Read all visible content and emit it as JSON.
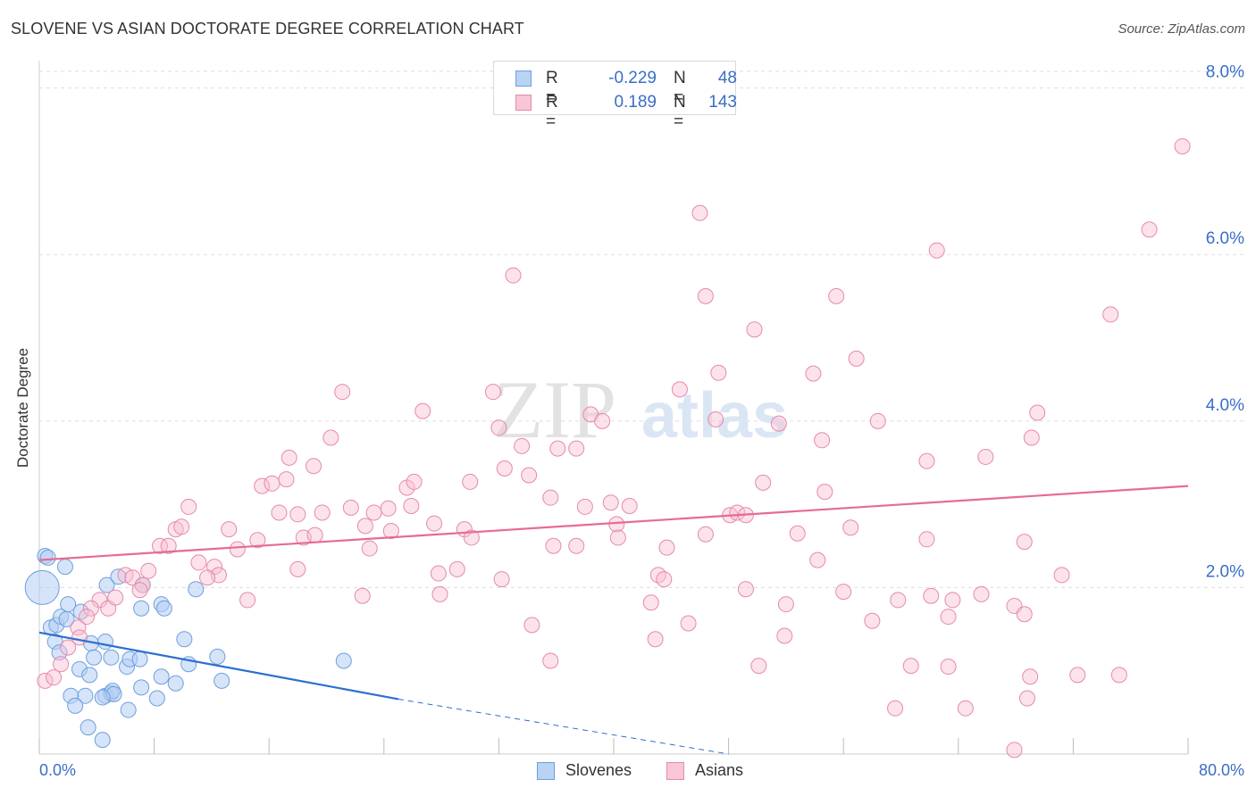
{
  "title": "SLOVENE VS ASIAN DOCTORATE DEGREE CORRELATION CHART",
  "source": "Source: ZipAtlas.com",
  "watermark": {
    "zip": "ZIP",
    "atlas": "atlas"
  },
  "legend_top": [
    {
      "r_label": "R =",
      "r_value": "-0.229",
      "n_label": "N =",
      "n_value": "48",
      "swatch_fill": "#b8d3f4",
      "swatch_stroke": "#6e9fdc"
    },
    {
      "r_label": "R =",
      "r_value": "0.189",
      "n_label": "N =",
      "n_value": "143",
      "swatch_fill": "#f9c6d6",
      "swatch_stroke": "#e58aaa"
    }
  ],
  "legend_bottom": [
    {
      "label": "Slovenes",
      "swatch_fill": "#b8d3f4",
      "swatch_stroke": "#6e9fdc"
    },
    {
      "label": "Asians",
      "swatch_fill": "#f9c6d6",
      "swatch_stroke": "#e58aaa"
    }
  ],
  "colors": {
    "slovene_line": "#2b6fd0",
    "asian_line": "#e56b95",
    "tick_label": "#3a6ec7",
    "grid": "#dddddd"
  },
  "chart_data": {
    "type": "scatter",
    "title": "SLOVENE VS ASIAN DOCTORATE DEGREE CORRELATION CHART",
    "xlabel": "",
    "ylabel": "Doctorate Degree",
    "xlim": [
      0,
      80
    ],
    "ylim": [
      0,
      8.2
    ],
    "x_tick_labels": [
      "0.0%",
      "80.0%"
    ],
    "y_ticks": [
      2,
      4,
      6,
      8
    ],
    "y_tick_labels": [
      "2.0%",
      "4.0%",
      "6.0%",
      "8.0%"
    ],
    "grid": true,
    "legend_position": "top-center",
    "series": [
      {
        "name": "Slovenes",
        "r": -0.229,
        "n": 48,
        "trend": {
          "x0": 0,
          "y0": 1.46,
          "x1": 25,
          "y1": 0.66,
          "dashed_to_x": 48,
          "dashed_to_y": 0.0
        },
        "points": [
          [
            0.4,
            2.38
          ],
          [
            0.6,
            2.36
          ],
          [
            0.2,
            2.0,
            "big"
          ],
          [
            1.8,
            2.25
          ],
          [
            0.8,
            1.52
          ],
          [
            1.2,
            1.55
          ],
          [
            1.5,
            1.65
          ],
          [
            1.9,
            1.62
          ],
          [
            2.0,
            1.8
          ],
          [
            2.9,
            1.71
          ],
          [
            1.1,
            1.35
          ],
          [
            1.4,
            1.22
          ],
          [
            3.6,
            1.33
          ],
          [
            4.6,
            1.35
          ],
          [
            3.8,
            1.16
          ],
          [
            5.0,
            1.16
          ],
          [
            6.1,
            1.05
          ],
          [
            2.8,
            1.02
          ],
          [
            3.5,
            0.95
          ],
          [
            6.3,
            1.14
          ],
          [
            7.0,
            1.14
          ],
          [
            8.5,
            0.93
          ],
          [
            9.5,
            0.85
          ],
          [
            10.1,
            1.38
          ],
          [
            10.4,
            1.08
          ],
          [
            12.4,
            1.17
          ],
          [
            12.7,
            0.88
          ],
          [
            7.1,
            0.8
          ],
          [
            8.2,
            0.67
          ],
          [
            2.2,
            0.7
          ],
          [
            3.2,
            0.7
          ],
          [
            4.6,
            0.7
          ],
          [
            5.0,
            0.73
          ],
          [
            5.1,
            0.76
          ],
          [
            2.5,
            0.58
          ],
          [
            6.2,
            0.53
          ],
          [
            3.4,
            0.32
          ],
          [
            4.4,
            0.17
          ],
          [
            4.7,
            2.03
          ],
          [
            5.5,
            2.13
          ],
          [
            7.1,
            1.75
          ],
          [
            8.5,
            1.8
          ],
          [
            8.7,
            1.75
          ],
          [
            10.9,
            1.98
          ],
          [
            21.2,
            1.12
          ],
          [
            5.2,
            0.72
          ],
          [
            4.4,
            0.68
          ],
          [
            7.2,
            2.03
          ]
        ]
      },
      {
        "name": "Asians",
        "r": 0.189,
        "n": 143,
        "trend": {
          "x0": 0,
          "y0": 2.33,
          "x1": 80,
          "y1": 3.22
        },
        "points": [
          [
            79.6,
            7.3
          ],
          [
            77.3,
            6.3
          ],
          [
            46.0,
            6.5
          ],
          [
            62.5,
            6.05
          ],
          [
            33.0,
            5.75
          ],
          [
            46.4,
            5.5
          ],
          [
            55.5,
            5.5
          ],
          [
            74.6,
            5.28
          ],
          [
            49.8,
            5.1
          ],
          [
            56.9,
            4.75
          ],
          [
            47.3,
            4.58
          ],
          [
            53.9,
            4.57
          ],
          [
            21.1,
            4.35
          ],
          [
            31.6,
            4.35
          ],
          [
            44.6,
            4.38
          ],
          [
            26.7,
            4.12
          ],
          [
            38.4,
            4.08
          ],
          [
            39.2,
            4.0
          ],
          [
            47.1,
            4.02
          ],
          [
            51.5,
            3.97
          ],
          [
            58.4,
            4.0
          ],
          [
            69.5,
            4.1
          ],
          [
            32.0,
            3.92
          ],
          [
            69.1,
            3.8
          ],
          [
            20.3,
            3.8
          ],
          [
            33.6,
            3.7
          ],
          [
            36.1,
            3.67
          ],
          [
            37.4,
            3.67
          ],
          [
            54.5,
            3.77
          ],
          [
            17.4,
            3.56
          ],
          [
            19.1,
            3.46
          ],
          [
            32.4,
            3.43
          ],
          [
            34.1,
            3.35
          ],
          [
            61.8,
            3.52
          ],
          [
            65.9,
            3.57
          ],
          [
            15.5,
            3.22
          ],
          [
            16.2,
            3.25
          ],
          [
            17.2,
            3.3
          ],
          [
            25.6,
            3.2
          ],
          [
            26.1,
            3.27
          ],
          [
            30.0,
            3.27
          ],
          [
            50.4,
            3.26
          ],
          [
            54.7,
            3.15
          ],
          [
            10.4,
            2.97
          ],
          [
            19.7,
            2.9
          ],
          [
            21.7,
            2.96
          ],
          [
            23.3,
            2.9
          ],
          [
            24.3,
            2.95
          ],
          [
            25.9,
            2.98
          ],
          [
            35.6,
            3.08
          ],
          [
            38.0,
            2.97
          ],
          [
            39.8,
            3.02
          ],
          [
            41.1,
            2.98
          ],
          [
            16.7,
            2.9
          ],
          [
            18.0,
            2.88
          ],
          [
            9.5,
            2.7
          ],
          [
            9.9,
            2.73
          ],
          [
            13.2,
            2.7
          ],
          [
            22.7,
            2.74
          ],
          [
            24.5,
            2.68
          ],
          [
            27.5,
            2.77
          ],
          [
            29.6,
            2.7
          ],
          [
            40.2,
            2.76
          ],
          [
            48.1,
            2.87
          ],
          [
            48.6,
            2.9
          ],
          [
            49.2,
            2.87
          ],
          [
            56.5,
            2.72
          ],
          [
            8.4,
            2.5
          ],
          [
            9.0,
            2.5
          ],
          [
            13.8,
            2.46
          ],
          [
            15.2,
            2.57
          ],
          [
            18.4,
            2.6
          ],
          [
            19.2,
            2.63
          ],
          [
            23.0,
            2.47
          ],
          [
            30.1,
            2.6
          ],
          [
            35.8,
            2.5
          ],
          [
            37.4,
            2.5
          ],
          [
            40.3,
            2.6
          ],
          [
            43.7,
            2.48
          ],
          [
            46.4,
            2.64
          ],
          [
            52.8,
            2.65
          ],
          [
            61.8,
            2.58
          ],
          [
            68.6,
            2.55
          ],
          [
            11.1,
            2.3
          ],
          [
            12.2,
            2.25
          ],
          [
            12.5,
            2.15
          ],
          [
            11.7,
            2.12
          ],
          [
            7.6,
            2.2
          ],
          [
            18.0,
            2.22
          ],
          [
            27.8,
            2.17
          ],
          [
            29.1,
            2.22
          ],
          [
            32.2,
            2.1
          ],
          [
            43.1,
            2.15
          ],
          [
            43.5,
            2.1
          ],
          [
            54.2,
            2.33
          ],
          [
            71.2,
            2.15
          ],
          [
            6.0,
            2.15
          ],
          [
            6.5,
            2.12
          ],
          [
            7.2,
            2.03
          ],
          [
            7.0,
            1.97
          ],
          [
            4.2,
            1.85
          ],
          [
            4.8,
            1.75
          ],
          [
            5.3,
            1.88
          ],
          [
            3.6,
            1.75
          ],
          [
            3.3,
            1.65
          ],
          [
            2.7,
            1.52
          ],
          [
            14.5,
            1.85
          ],
          [
            22.5,
            1.9
          ],
          [
            27.9,
            1.92
          ],
          [
            42.6,
            1.82
          ],
          [
            49.2,
            1.98
          ],
          [
            52.0,
            1.8
          ],
          [
            56.0,
            1.95
          ],
          [
            59.8,
            1.85
          ],
          [
            62.1,
            1.9
          ],
          [
            63.6,
            1.85
          ],
          [
            65.6,
            1.92
          ],
          [
            58.0,
            1.6
          ],
          [
            63.3,
            1.65
          ],
          [
            67.9,
            1.78
          ],
          [
            68.6,
            1.68
          ],
          [
            34.3,
            1.55
          ],
          [
            42.9,
            1.38
          ],
          [
            45.2,
            1.57
          ],
          [
            51.9,
            1.42
          ],
          [
            1.5,
            1.08
          ],
          [
            2.8,
            1.4
          ],
          [
            35.6,
            1.12
          ],
          [
            50.1,
            1.06
          ],
          [
            60.7,
            1.06
          ],
          [
            63.3,
            1.05
          ],
          [
            69.0,
            0.93
          ],
          [
            72.3,
            0.95
          ],
          [
            75.2,
            0.95
          ],
          [
            0.4,
            0.88
          ],
          [
            1.0,
            0.92
          ],
          [
            59.6,
            0.55
          ],
          [
            64.5,
            0.55
          ],
          [
            68.8,
            0.67
          ],
          [
            67.9,
            0.05
          ],
          [
            2.0,
            1.28
          ]
        ]
      }
    ]
  }
}
